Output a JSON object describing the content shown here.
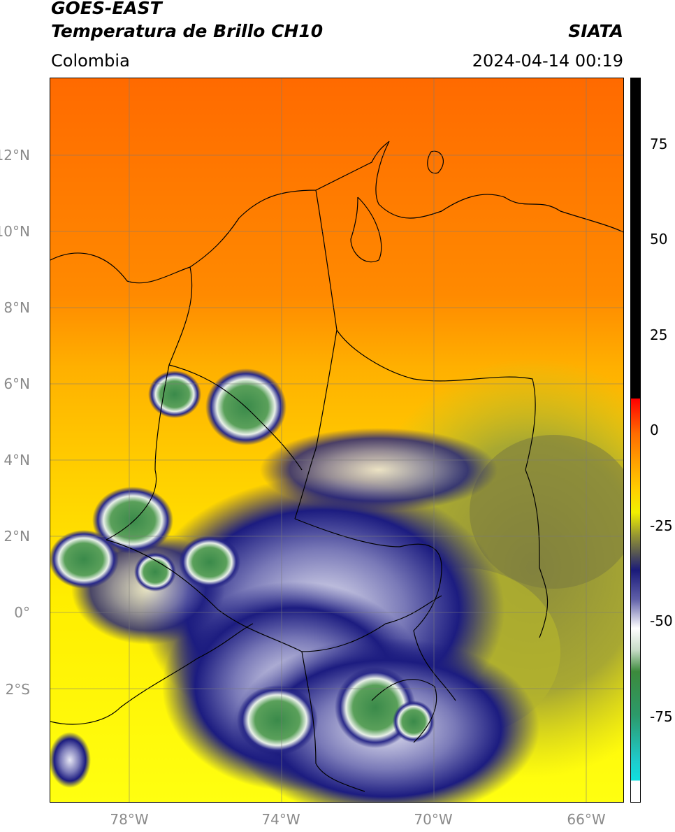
{
  "header": {
    "title_line1": "GOES-EAST",
    "title_line2": "Temperatura de Brillo CH10",
    "agency": "SIATA",
    "region": "Colombia",
    "timestamp": "2024-04-14 00:19"
  },
  "map": {
    "lon_range": [
      -80,
      -65
    ],
    "lat_range": [
      -5,
      14
    ],
    "lat_ticks": [
      "12°N",
      "10°N",
      "8°N",
      "6°N",
      "4°N",
      "2°N",
      "0°",
      "2°S"
    ],
    "lon_ticks": [
      "78°W",
      "74°W",
      "70°W",
      "66°W"
    ],
    "gridlines": true
  },
  "colorbar": {
    "ticks": [
      "75",
      "50",
      "25",
      "0",
      "-25",
      "-50",
      "-75"
    ],
    "range": [
      -97,
      90
    ],
    "colors": {
      "hot": "#000000",
      "warm": "#e8231a",
      "mid_orange": "#ff9a00",
      "yellow": "#ffff00",
      "olive": "#8a8a3a",
      "navy": "#1a1a7a",
      "white": "#ffffff",
      "green": "#3a9a4a",
      "cyan": "#10d8d8"
    }
  }
}
